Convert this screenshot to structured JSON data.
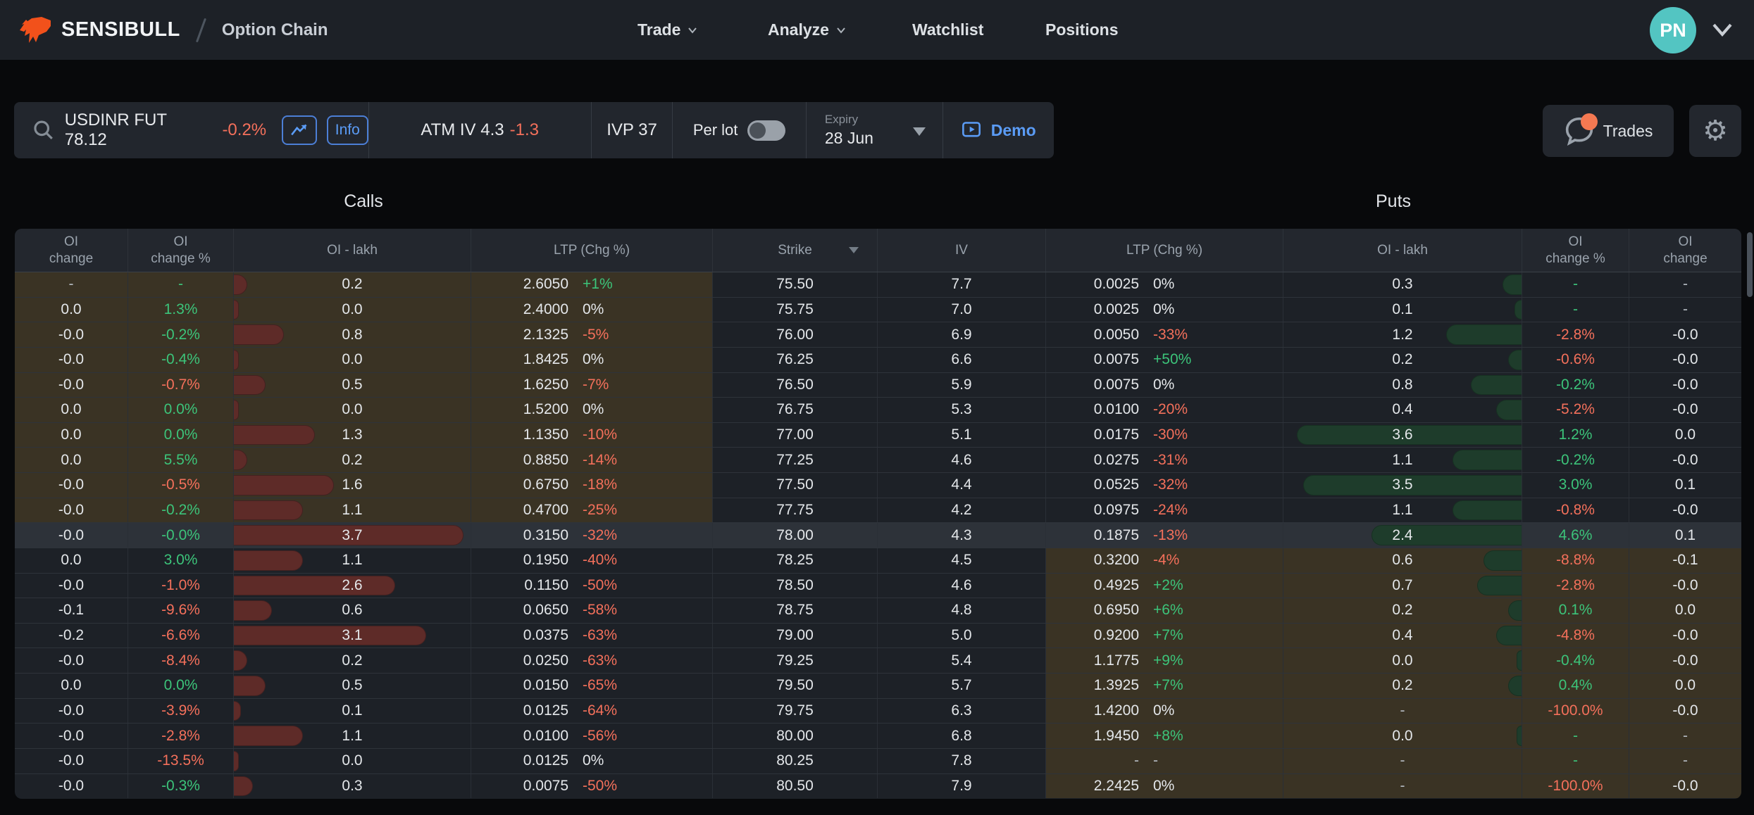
{
  "header": {
    "brand": "SENSIBULL",
    "page_title": "Option Chain",
    "nav": [
      {
        "label": "Trade",
        "has_dropdown": true
      },
      {
        "label": "Analyze",
        "has_dropdown": true
      },
      {
        "label": "Watchlist",
        "has_dropdown": false
      },
      {
        "label": "Positions",
        "has_dropdown": false
      }
    ],
    "avatar_initials": "PN"
  },
  "toolbar": {
    "instrument": "USDINR FUT 78.12",
    "instrument_change": "-0.2%",
    "info_label": "Info",
    "atm_iv_label": "ATM IV",
    "atm_iv_value": "4.3",
    "atm_iv_change": "-1.3",
    "ivp_label": "IVP 37",
    "per_lot_label": "Per lot",
    "per_lot_on": false,
    "expiry_label": "Expiry",
    "expiry_value": "28 Jun",
    "demo_label": "Demo",
    "trades_label": "Trades"
  },
  "colors": {
    "accent_blue": "#5b9cf6",
    "green": "#3cc47a",
    "red": "#f4705b",
    "call_bar": "#5e2b28",
    "put_bar": "#1e3c2b",
    "itm_background": "#3a3324",
    "atm_background": "#2d3239",
    "avatar_teal": "#53c5c2",
    "logo_orange": "#f2511b",
    "badge_orange": "#f47952"
  },
  "table": {
    "calls_label": "Calls",
    "puts_label": "Puts",
    "columns": [
      "OI\nchange",
      "OI\nchange %",
      "OI - lakh",
      "LTP (Chg %)",
      "Strike",
      "IV",
      "LTP (Chg %)",
      "OI - lakh",
      "OI\nchange %",
      "OI\nchange"
    ],
    "max_oi_lakh": 3.7,
    "atm_index": 10,
    "rows": [
      {
        "c_oi_chg": "-",
        "c_pct": "-",
        "c_pct_c": "g",
        "c_oi": "0.2",
        "c_ltp": "2.6050",
        "c_chg": "+1%",
        "c_chg_c": "g",
        "strike": "75.50",
        "iv": "7.7",
        "p_ltp": "0.0025",
        "p_chg": "0%",
        "p_chg_c": "w",
        "p_oi": "0.3",
        "p_pct": "-",
        "p_pct_c": "g",
        "p_oi_chg": "-"
      },
      {
        "c_oi_chg": "0.0",
        "c_pct": "1.3%",
        "c_pct_c": "g",
        "c_oi": "0.0",
        "c_ltp": "2.4000",
        "c_chg": "0%",
        "c_chg_c": "w",
        "strike": "75.75",
        "iv": "7.0",
        "p_ltp": "0.0025",
        "p_chg": "0%",
        "p_chg_c": "w",
        "p_oi": "0.1",
        "p_pct": "-",
        "p_pct_c": "g",
        "p_oi_chg": "-"
      },
      {
        "c_oi_chg": "-0.0",
        "c_pct": "-0.2%",
        "c_pct_c": "g",
        "c_oi": "0.8",
        "c_ltp": "2.1325",
        "c_chg": "-5%",
        "c_chg_c": "r",
        "strike": "76.00",
        "iv": "6.9",
        "p_ltp": "0.0050",
        "p_chg": "-33%",
        "p_chg_c": "r",
        "p_oi": "1.2",
        "p_pct": "-2.8%",
        "p_pct_c": "r",
        "p_oi_chg": "-0.0"
      },
      {
        "c_oi_chg": "-0.0",
        "c_pct": "-0.4%",
        "c_pct_c": "g",
        "c_oi": "0.0",
        "c_ltp": "1.8425",
        "c_chg": "0%",
        "c_chg_c": "w",
        "strike": "76.25",
        "iv": "6.6",
        "p_ltp": "0.0075",
        "p_chg": "+50%",
        "p_chg_c": "g",
        "p_oi": "0.2",
        "p_pct": "-0.6%",
        "p_pct_c": "r",
        "p_oi_chg": "-0.0"
      },
      {
        "c_oi_chg": "-0.0",
        "c_pct": "-0.7%",
        "c_pct_c": "r",
        "c_oi": "0.5",
        "c_ltp": "1.6250",
        "c_chg": "-7%",
        "c_chg_c": "r",
        "strike": "76.50",
        "iv": "5.9",
        "p_ltp": "0.0075",
        "p_chg": "0%",
        "p_chg_c": "w",
        "p_oi": "0.8",
        "p_pct": "-0.2%",
        "p_pct_c": "g",
        "p_oi_chg": "-0.0"
      },
      {
        "c_oi_chg": "0.0",
        "c_pct": "0.0%",
        "c_pct_c": "g",
        "c_oi": "0.0",
        "c_ltp": "1.5200",
        "c_chg": "0%",
        "c_chg_c": "w",
        "strike": "76.75",
        "iv": "5.3",
        "p_ltp": "0.0100",
        "p_chg": "-20%",
        "p_chg_c": "r",
        "p_oi": "0.4",
        "p_pct": "-5.2%",
        "p_pct_c": "r",
        "p_oi_chg": "-0.0"
      },
      {
        "c_oi_chg": "0.0",
        "c_pct": "0.0%",
        "c_pct_c": "g",
        "c_oi": "1.3",
        "c_ltp": "1.1350",
        "c_chg": "-10%",
        "c_chg_c": "r",
        "strike": "77.00",
        "iv": "5.1",
        "p_ltp": "0.0175",
        "p_chg": "-30%",
        "p_chg_c": "r",
        "p_oi": "3.6",
        "p_pct": "1.2%",
        "p_pct_c": "g",
        "p_oi_chg": "0.0"
      },
      {
        "c_oi_chg": "0.0",
        "c_pct": "5.5%",
        "c_pct_c": "g",
        "c_oi": "0.2",
        "c_ltp": "0.8850",
        "c_chg": "-14%",
        "c_chg_c": "r",
        "strike": "77.25",
        "iv": "4.6",
        "p_ltp": "0.0275",
        "p_chg": "-31%",
        "p_chg_c": "r",
        "p_oi": "1.1",
        "p_pct": "-0.2%",
        "p_pct_c": "g",
        "p_oi_chg": "-0.0"
      },
      {
        "c_oi_chg": "-0.0",
        "c_pct": "-0.5%",
        "c_pct_c": "r",
        "c_oi": "1.6",
        "c_ltp": "0.6750",
        "c_chg": "-18%",
        "c_chg_c": "r",
        "strike": "77.50",
        "iv": "4.4",
        "p_ltp": "0.0525",
        "p_chg": "-32%",
        "p_chg_c": "r",
        "p_oi": "3.5",
        "p_pct": "3.0%",
        "p_pct_c": "g",
        "p_oi_chg": "0.1"
      },
      {
        "c_oi_chg": "-0.0",
        "c_pct": "-0.2%",
        "c_pct_c": "g",
        "c_oi": "1.1",
        "c_ltp": "0.4700",
        "c_chg": "-25%",
        "c_chg_c": "r",
        "strike": "77.75",
        "iv": "4.2",
        "p_ltp": "0.0975",
        "p_chg": "-24%",
        "p_chg_c": "r",
        "p_oi": "1.1",
        "p_pct": "-0.8%",
        "p_pct_c": "r",
        "p_oi_chg": "-0.0"
      },
      {
        "c_oi_chg": "-0.0",
        "c_pct": "-0.0%",
        "c_pct_c": "g",
        "c_oi": "3.7",
        "c_ltp": "0.3150",
        "c_chg": "-32%",
        "c_chg_c": "r",
        "strike": "78.00",
        "iv": "4.3",
        "p_ltp": "0.1875",
        "p_chg": "-13%",
        "p_chg_c": "r",
        "p_oi": "2.4",
        "p_pct": "4.6%",
        "p_pct_c": "g",
        "p_oi_chg": "0.1"
      },
      {
        "c_oi_chg": "0.0",
        "c_pct": "3.0%",
        "c_pct_c": "g",
        "c_oi": "1.1",
        "c_ltp": "0.1950",
        "c_chg": "-40%",
        "c_chg_c": "r",
        "strike": "78.25",
        "iv": "4.5",
        "p_ltp": "0.3200",
        "p_chg": "-4%",
        "p_chg_c": "r",
        "p_oi": "0.6",
        "p_pct": "-8.8%",
        "p_pct_c": "r",
        "p_oi_chg": "-0.1"
      },
      {
        "c_oi_chg": "-0.0",
        "c_pct": "-1.0%",
        "c_pct_c": "r",
        "c_oi": "2.6",
        "c_ltp": "0.1150",
        "c_chg": "-50%",
        "c_chg_c": "r",
        "strike": "78.50",
        "iv": "4.6",
        "p_ltp": "0.4925",
        "p_chg": "+2%",
        "p_chg_c": "g",
        "p_oi": "0.7",
        "p_pct": "-2.8%",
        "p_pct_c": "r",
        "p_oi_chg": "-0.0"
      },
      {
        "c_oi_chg": "-0.1",
        "c_pct": "-9.6%",
        "c_pct_c": "r",
        "c_oi": "0.6",
        "c_ltp": "0.0650",
        "c_chg": "-58%",
        "c_chg_c": "r",
        "strike": "78.75",
        "iv": "4.8",
        "p_ltp": "0.6950",
        "p_chg": "+6%",
        "p_chg_c": "g",
        "p_oi": "0.2",
        "p_pct": "0.1%",
        "p_pct_c": "g",
        "p_oi_chg": "0.0"
      },
      {
        "c_oi_chg": "-0.2",
        "c_pct": "-6.6%",
        "c_pct_c": "r",
        "c_oi": "3.1",
        "c_ltp": "0.0375",
        "c_chg": "-63%",
        "c_chg_c": "r",
        "strike": "79.00",
        "iv": "5.0",
        "p_ltp": "0.9200",
        "p_chg": "+7%",
        "p_chg_c": "g",
        "p_oi": "0.4",
        "p_pct": "-4.8%",
        "p_pct_c": "r",
        "p_oi_chg": "-0.0"
      },
      {
        "c_oi_chg": "-0.0",
        "c_pct": "-8.4%",
        "c_pct_c": "r",
        "c_oi": "0.2",
        "c_ltp": "0.0250",
        "c_chg": "-63%",
        "c_chg_c": "r",
        "strike": "79.25",
        "iv": "5.4",
        "p_ltp": "1.1775",
        "p_chg": "+9%",
        "p_chg_c": "g",
        "p_oi": "0.0",
        "p_pct": "-0.4%",
        "p_pct_c": "g",
        "p_oi_chg": "-0.0"
      },
      {
        "c_oi_chg": "0.0",
        "c_pct": "0.0%",
        "c_pct_c": "g",
        "c_oi": "0.5",
        "c_ltp": "0.0150",
        "c_chg": "-65%",
        "c_chg_c": "r",
        "strike": "79.50",
        "iv": "5.7",
        "p_ltp": "1.3925",
        "p_chg": "+7%",
        "p_chg_c": "g",
        "p_oi": "0.2",
        "p_pct": "0.4%",
        "p_pct_c": "g",
        "p_oi_chg": "0.0"
      },
      {
        "c_oi_chg": "-0.0",
        "c_pct": "-3.9%",
        "c_pct_c": "r",
        "c_oi": "0.1",
        "c_ltp": "0.0125",
        "c_chg": "-64%",
        "c_chg_c": "r",
        "strike": "79.75",
        "iv": "6.3",
        "p_ltp": "1.4200",
        "p_chg": "0%",
        "p_chg_c": "w",
        "p_oi": "-",
        "p_pct": "-100.0%",
        "p_pct_c": "r",
        "p_oi_chg": "-0.0"
      },
      {
        "c_oi_chg": "-0.0",
        "c_pct": "-2.8%",
        "c_pct_c": "r",
        "c_oi": "1.1",
        "c_ltp": "0.0100",
        "c_chg": "-56%",
        "c_chg_c": "r",
        "strike": "80.00",
        "iv": "6.8",
        "p_ltp": "1.9450",
        "p_chg": "+8%",
        "p_chg_c": "g",
        "p_oi": "0.0",
        "p_pct": "-",
        "p_pct_c": "g",
        "p_oi_chg": "-"
      },
      {
        "c_oi_chg": "-0.0",
        "c_pct": "-13.5%",
        "c_pct_c": "r",
        "c_oi": "0.0",
        "c_ltp": "0.0125",
        "c_chg": "0%",
        "c_chg_c": "w",
        "strike": "80.25",
        "iv": "7.8",
        "p_ltp": "-",
        "p_chg": "-",
        "p_chg_c": "d",
        "p_oi": "-",
        "p_pct": "-",
        "p_pct_c": "g",
        "p_oi_chg": "-"
      },
      {
        "c_oi_chg": "-0.0",
        "c_pct": "-0.3%",
        "c_pct_c": "g",
        "c_oi": "0.3",
        "c_ltp": "0.0075",
        "c_chg": "-50%",
        "c_chg_c": "r",
        "strike": "80.50",
        "iv": "7.9",
        "p_ltp": "2.2425",
        "p_chg": "0%",
        "p_chg_c": "w",
        "p_oi": "-",
        "p_pct": "-100.0%",
        "p_pct_c": "r",
        "p_oi_chg": "-0.0"
      }
    ]
  }
}
